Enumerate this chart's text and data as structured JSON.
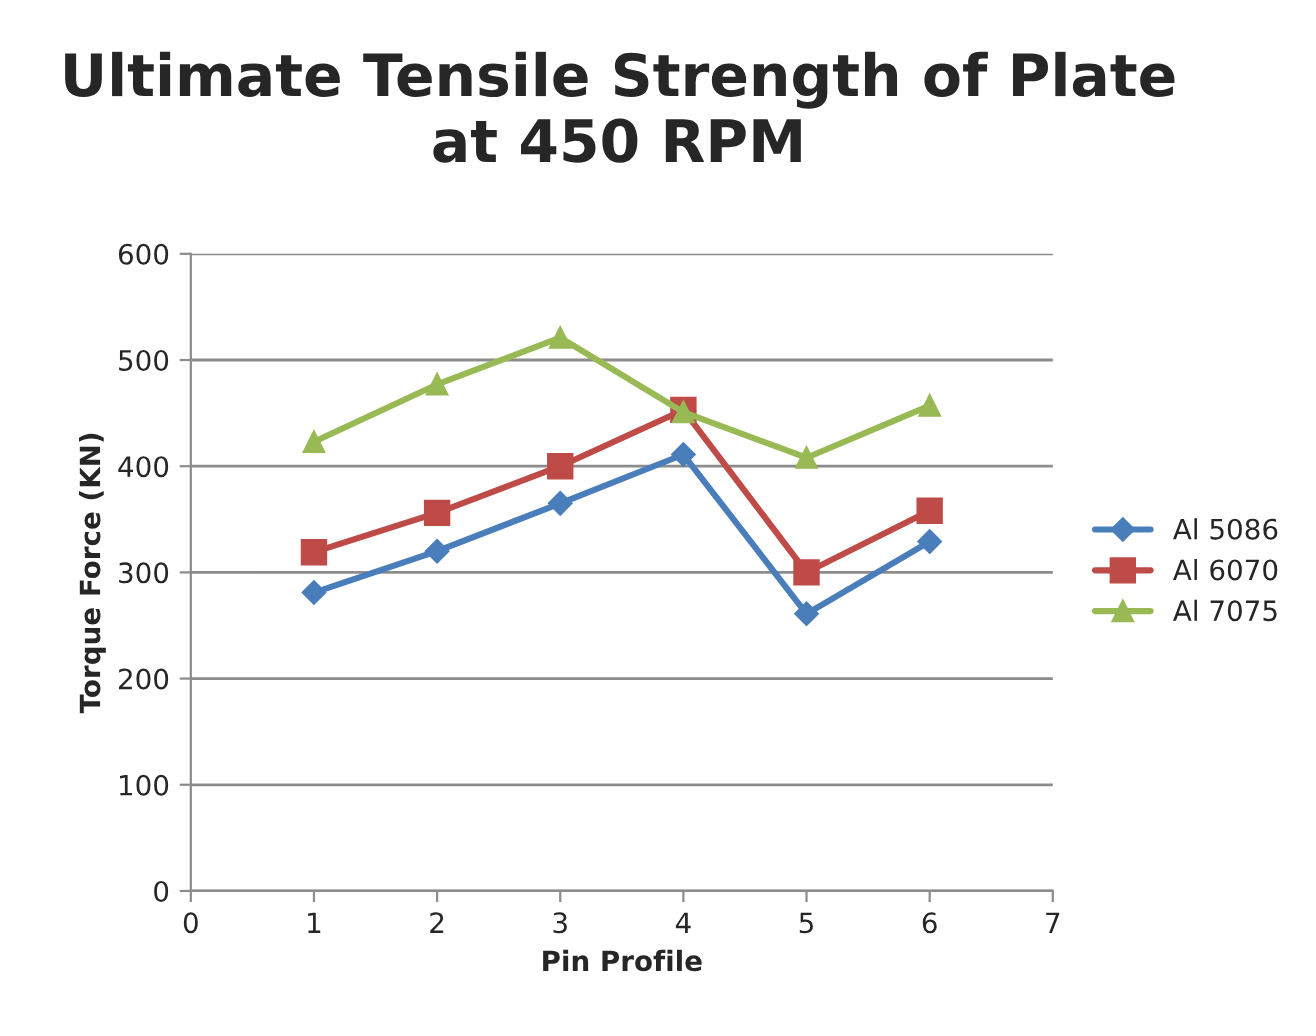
{
  "chart_data": {
    "type": "line",
    "title": "Ultimate Tensile Strength of Plate at 450 RPM",
    "xlabel": "Pin Profile",
    "ylabel": "Torque Force (KN)",
    "x": [
      1,
      2,
      3,
      4,
      5,
      6
    ],
    "series": [
      {
        "name": "Al 5086",
        "color": "#4a7ebb",
        "marker": "diamond",
        "values": [
          281,
          320,
          365,
          411,
          261,
          329
        ]
      },
      {
        "name": "Al 6070",
        "color": "#be4b48",
        "marker": "square",
        "values": [
          319,
          356,
          400,
          453,
          300,
          358
        ]
      },
      {
        "name": "Al 7075",
        "color": "#98b954",
        "marker": "triangle",
        "values": [
          423,
          477,
          521,
          451,
          408,
          457
        ]
      }
    ],
    "xlim": [
      0,
      7
    ],
    "xticks": [
      0,
      1,
      2,
      3,
      4,
      5,
      6,
      7
    ],
    "ylim": [
      0,
      600
    ],
    "yticks": [
      0,
      100,
      200,
      300,
      400,
      500,
      600
    ],
    "grid": "y",
    "legend": "right",
    "line_style": "solid"
  }
}
